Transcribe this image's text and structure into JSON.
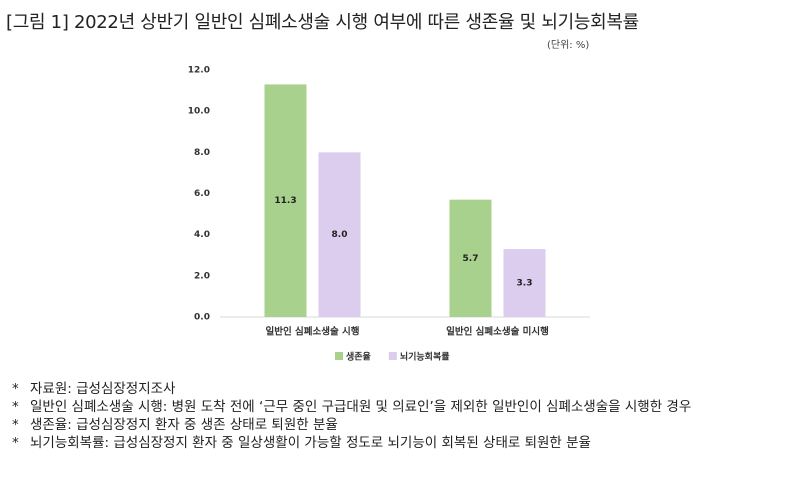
{
  "chart_data": {
    "type": "bar",
    "title": "[그림 1] 2022년 상반기 일반인 심폐소생술 시행 여부에 따른 생존율 및 뇌기능회복률",
    "unit": "(단위: %)",
    "categories": [
      "일반인 심폐소생술 시행",
      "일반인 심폐소생술 미시행"
    ],
    "series": [
      {
        "name": "생존율",
        "color": "#a9d18e",
        "values": [
          11.3,
          5.7
        ],
        "value_labels": [
          "11.3",
          "5.7"
        ]
      },
      {
        "name": "뇌기능회복률",
        "color": "#dccdee",
        "values": [
          8.0,
          3.3
        ],
        "value_labels": [
          "8.0",
          "3.3"
        ]
      }
    ],
    "ylim": [
      0,
      12
    ],
    "yticks": [
      {
        "value": 0,
        "label": "0.0"
      },
      {
        "value": 2,
        "label": "2.0"
      },
      {
        "value": 4,
        "label": "4.0"
      },
      {
        "value": 6,
        "label": "6.0"
      },
      {
        "value": 8,
        "label": "8.0"
      },
      {
        "value": 10,
        "label": "10.0"
      },
      {
        "value": 12,
        "label": "12.0"
      }
    ],
    "grid": false,
    "legend": "bottom"
  },
  "notes": [
    "자료원: 급성심장정지조사",
    "일반인 심폐소생술 시행: 병원 도착 전에 ‘근무 중인 구급대원 및 의료인’을 제외한 일반인이 심폐소생술을 시행한 경우",
    "생존율: 급성심장정지 환자 중 생존 상태로 퇴원한 분율",
    "뇌기능회복률: 급성심장정지 환자 중 일상생활이 가능할 정도로 뇌기능이 회복된 상태로 퇴원한 분율"
  ]
}
